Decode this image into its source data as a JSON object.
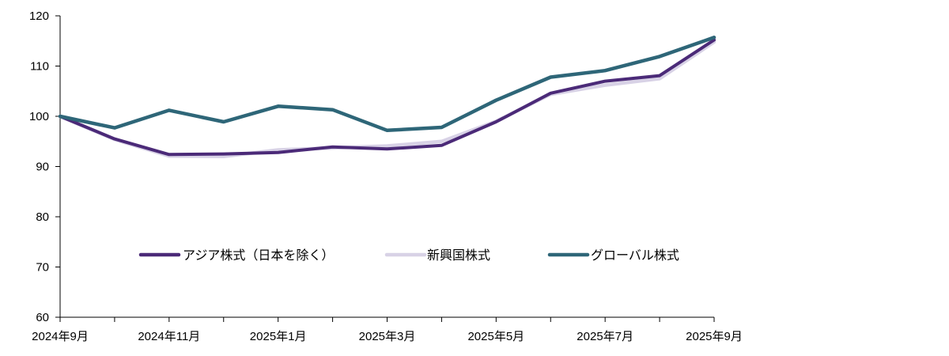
{
  "chart_data": {
    "type": "line",
    "title": "",
    "xlabel": "",
    "ylabel": "",
    "ylim": [
      60,
      120
    ],
    "yticks": [
      60,
      70,
      80,
      90,
      100,
      110,
      120
    ],
    "x_tick_labels": [
      "2024年9月",
      "2024年11月",
      "2025年1月",
      "2025年3月",
      "2025年5月",
      "2025年7月",
      "2025年9月"
    ],
    "x_tick_indices": [
      0,
      2,
      4,
      6,
      8,
      10,
      12
    ],
    "num_points": 13,
    "grid": false,
    "legend_position": "middle-center",
    "series": [
      {
        "name": "アジア株式（日本を除く）",
        "color": "#4b2a78",
        "values": [
          100,
          95.5,
          92.4,
          92.5,
          92.8,
          93.9,
          93.5,
          94.2,
          98.9,
          104.6,
          107.0,
          108.1,
          115.2
        ]
      },
      {
        "name": "新興国株式",
        "color": "#d8d2e6",
        "values": [
          100,
          95.4,
          92.1,
          92.0,
          93.3,
          93.7,
          94.1,
          95.0,
          99.0,
          104.4,
          106.2,
          107.5,
          114.8
        ]
      },
      {
        "name": "グローバル株式",
        "color": "#2e6678",
        "values": [
          100,
          97.7,
          101.2,
          98.9,
          102.0,
          101.3,
          97.2,
          97.8,
          103.2,
          107.8,
          109.1,
          111.9,
          115.7
        ]
      }
    ]
  }
}
